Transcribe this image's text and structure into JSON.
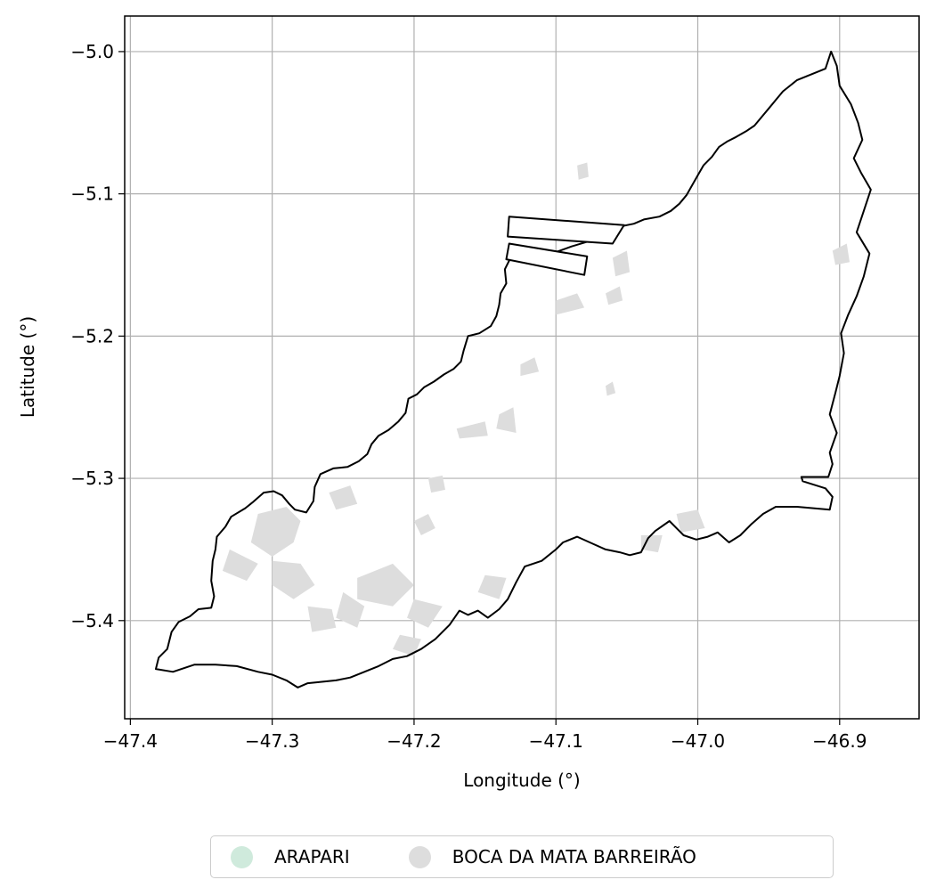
{
  "chart_data": {
    "type": "map",
    "xlabel": "Longitude (°)",
    "ylabel": "Latitude (°)",
    "xlim": [
      -47.404,
      -46.844
    ],
    "ylim": [
      -5.469,
      -4.975
    ],
    "x_ticks": [
      -47.4,
      -47.3,
      -47.2,
      -47.1,
      -47.0,
      -46.9
    ],
    "y_ticks": [
      -5.0,
      -5.1,
      -5.2,
      -5.3,
      -5.4
    ],
    "x_tick_labels": [
      "−47.4",
      "−47.3",
      "−47.2",
      "−47.1",
      "−47.0",
      "−46.9"
    ],
    "y_tick_labels": [
      "−5.0",
      "−5.1",
      "−5.2",
      "−5.3",
      "−5.4"
    ],
    "grid": true,
    "legend_position": "bottom-center",
    "legend": [
      {
        "label": "ARAPARI",
        "color": "#cfeadc"
      },
      {
        "label": "BOCA DA MATA BARREIRÃO",
        "color": "#dddddd"
      }
    ],
    "boundary_color": "#000000",
    "patch_color": "#dddddd",
    "boundary": [
      [
        -47.382,
        -5.434
      ],
      [
        -47.38,
        -5.426
      ],
      [
        -47.374,
        -5.42
      ],
      [
        -47.371,
        -5.408
      ],
      [
        -47.366,
        -5.401
      ],
      [
        -47.358,
        -5.397
      ],
      [
        -47.352,
        -5.392
      ],
      [
        -47.343,
        -5.391
      ],
      [
        -47.341,
        -5.383
      ],
      [
        -47.343,
        -5.372
      ],
      [
        -47.342,
        -5.358
      ],
      [
        -47.34,
        -5.35
      ],
      [
        -47.339,
        -5.341
      ],
      [
        -47.333,
        -5.334
      ],
      [
        -47.329,
        -5.327
      ],
      [
        -47.319,
        -5.321
      ],
      [
        -47.314,
        -5.317
      ],
      [
        -47.306,
        -5.31
      ],
      [
        -47.299,
        -5.309
      ],
      [
        -47.293,
        -5.312
      ],
      [
        -47.288,
        -5.318
      ],
      [
        -47.284,
        -5.322
      ],
      [
        -47.276,
        -5.324
      ],
      [
        -47.271,
        -5.316
      ],
      [
        -47.27,
        -5.306
      ],
      [
        -47.266,
        -5.297
      ],
      [
        -47.257,
        -5.293
      ],
      [
        -47.247,
        -5.292
      ],
      [
        -47.239,
        -5.288
      ],
      [
        -47.233,
        -5.283
      ],
      [
        -47.23,
        -5.276
      ],
      [
        -47.225,
        -5.27
      ],
      [
        -47.218,
        -5.266
      ],
      [
        -47.211,
        -5.26
      ],
      [
        -47.206,
        -5.254
      ],
      [
        -47.204,
        -5.244
      ],
      [
        -47.198,
        -5.241
      ],
      [
        -47.193,
        -5.236
      ],
      [
        -47.186,
        -5.232
      ],
      [
        -47.179,
        -5.227
      ],
      [
        -47.172,
        -5.223
      ],
      [
        -47.167,
        -5.218
      ],
      [
        -47.165,
        -5.21
      ],
      [
        -47.162,
        -5.2
      ],
      [
        -47.154,
        -5.198
      ],
      [
        -47.146,
        -5.193
      ],
      [
        -47.142,
        -5.186
      ],
      [
        -47.14,
        -5.178
      ],
      [
        -47.139,
        -5.17
      ],
      [
        -47.135,
        -5.163
      ],
      [
        -47.136,
        -5.153
      ],
      [
        -47.133,
        -5.147
      ],
      [
        -47.128,
        -5.143
      ],
      [
        -47.118,
        -5.144
      ],
      [
        -47.111,
        -5.143
      ],
      [
        -47.1,
        -5.141
      ],
      [
        -47.089,
        -5.137
      ],
      [
        -47.079,
        -5.134
      ],
      [
        -47.072,
        -5.131
      ],
      [
        -47.062,
        -5.127
      ],
      [
        -47.055,
        -5.123
      ],
      [
        -47.045,
        -5.121
      ],
      [
        -47.038,
        -5.118
      ],
      [
        -47.027,
        -5.116
      ],
      [
        -47.019,
        -5.112
      ],
      [
        -47.013,
        -5.107
      ],
      [
        -47.008,
        -5.101
      ],
      [
        -47.004,
        -5.094
      ],
      [
        -47.0,
        -5.087
      ],
      [
        -46.996,
        -5.08
      ],
      [
        -46.99,
        -5.074
      ],
      [
        -46.985,
        -5.067
      ],
      [
        -46.979,
        -5.063
      ],
      [
        -46.973,
        -5.06
      ],
      [
        -46.966,
        -5.056
      ],
      [
        -46.96,
        -5.052
      ],
      [
        -46.955,
        -5.046
      ],
      [
        -46.95,
        -5.04
      ],
      [
        -46.945,
        -5.034
      ],
      [
        -46.94,
        -5.028
      ],
      [
        -46.93,
        -5.02
      ],
      [
        -46.91,
        -5.012
      ],
      [
        -46.906,
        -5.0
      ],
      [
        -46.902,
        -5.01
      ],
      [
        -46.9,
        -5.024
      ],
      [
        -46.892,
        -5.037
      ],
      [
        -46.887,
        -5.05
      ],
      [
        -46.884,
        -5.062
      ],
      [
        -46.89,
        -5.075
      ],
      [
        -46.885,
        -5.085
      ],
      [
        -46.878,
        -5.097
      ],
      [
        -46.883,
        -5.112
      ],
      [
        -46.888,
        -5.127
      ],
      [
        -46.879,
        -5.142
      ],
      [
        -46.883,
        -5.158
      ],
      [
        -46.888,
        -5.172
      ],
      [
        -46.894,
        -5.185
      ],
      [
        -46.899,
        -5.198
      ],
      [
        -46.897,
        -5.212
      ],
      [
        -46.9,
        -5.228
      ],
      [
        -46.903,
        -5.24
      ],
      [
        -46.907,
        -5.255
      ],
      [
        -46.902,
        -5.268
      ],
      [
        -46.907,
        -5.282
      ],
      [
        -46.905,
        -5.29
      ],
      [
        -46.908,
        -5.299
      ],
      [
        -46.927,
        -5.299
      ],
      [
        -46.926,
        -5.302
      ],
      [
        -46.91,
        -5.307
      ],
      [
        -46.905,
        -5.313
      ],
      [
        -46.907,
        -5.322
      ],
      [
        -46.93,
        -5.32
      ],
      [
        -46.945,
        -5.32
      ],
      [
        -46.954,
        -5.325
      ],
      [
        -46.962,
        -5.332
      ],
      [
        -46.97,
        -5.34
      ],
      [
        -46.978,
        -5.345
      ],
      [
        -46.986,
        -5.338
      ],
      [
        -46.993,
        -5.341
      ],
      [
        -47.001,
        -5.343
      ],
      [
        -47.01,
        -5.34
      ],
      [
        -47.02,
        -5.33
      ],
      [
        -47.03,
        -5.337
      ],
      [
        -47.035,
        -5.342
      ],
      [
        -47.04,
        -5.352
      ],
      [
        -47.048,
        -5.354
      ],
      [
        -47.055,
        -5.352
      ],
      [
        -47.065,
        -5.35
      ],
      [
        -47.074,
        -5.346
      ],
      [
        -47.085,
        -5.341
      ],
      [
        -47.095,
        -5.345
      ],
      [
        -47.1,
        -5.35
      ],
      [
        -47.11,
        -5.358
      ],
      [
        -47.122,
        -5.362
      ],
      [
        -47.128,
        -5.373
      ],
      [
        -47.134,
        -5.385
      ],
      [
        -47.14,
        -5.392
      ],
      [
        -47.148,
        -5.398
      ],
      [
        -47.155,
        -5.393
      ],
      [
        -47.162,
        -5.396
      ],
      [
        -47.168,
        -5.393
      ],
      [
        -47.175,
        -5.403
      ],
      [
        -47.185,
        -5.413
      ],
      [
        -47.195,
        -5.42
      ],
      [
        -47.205,
        -5.425
      ],
      [
        -47.215,
        -5.427
      ],
      [
        -47.225,
        -5.432
      ],
      [
        -47.235,
        -5.436
      ],
      [
        -47.245,
        -5.44
      ],
      [
        -47.255,
        -5.442
      ],
      [
        -47.265,
        -5.443
      ],
      [
        -47.275,
        -5.444
      ],
      [
        -47.282,
        -5.447
      ],
      [
        -47.29,
        -5.442
      ],
      [
        -47.3,
        -5.438
      ],
      [
        -47.31,
        -5.436
      ],
      [
        -47.325,
        -5.432
      ],
      [
        -47.34,
        -5.431
      ],
      [
        -47.355,
        -5.431
      ],
      [
        -47.37,
        -5.436
      ],
      [
        -47.382,
        -5.434
      ]
    ],
    "holes": [
      [
        [
          -47.133,
          -5.116
        ],
        [
          -47.052,
          -5.122
        ],
        [
          -47.06,
          -5.135
        ],
        [
          -47.134,
          -5.13
        ],
        [
          -47.133,
          -5.116
        ]
      ],
      [
        [
          -47.133,
          -5.135
        ],
        [
          -47.078,
          -5.144
        ],
        [
          -47.08,
          -5.157
        ],
        [
          -47.135,
          -5.146
        ],
        [
          -47.133,
          -5.135
        ]
      ]
    ],
    "patches": [
      [
        [
          -47.31,
          -5.325
        ],
        [
          -47.29,
          -5.32
        ],
        [
          -47.28,
          -5.33
        ],
        [
          -47.285,
          -5.345
        ],
        [
          -47.3,
          -5.355
        ],
        [
          -47.315,
          -5.345
        ]
      ],
      [
        [
          -47.33,
          -5.35
        ],
        [
          -47.31,
          -5.36
        ],
        [
          -47.318,
          -5.372
        ],
        [
          -47.335,
          -5.365
        ]
      ],
      [
        [
          -47.3,
          -5.358
        ],
        [
          -47.28,
          -5.36
        ],
        [
          -47.27,
          -5.375
        ],
        [
          -47.285,
          -5.385
        ],
        [
          -47.3,
          -5.375
        ]
      ],
      [
        [
          -47.26,
          -5.31
        ],
        [
          -47.245,
          -5.305
        ],
        [
          -47.24,
          -5.318
        ],
        [
          -47.255,
          -5.322
        ]
      ],
      [
        [
          -47.24,
          -5.37
        ],
        [
          -47.215,
          -5.36
        ],
        [
          -47.2,
          -5.375
        ],
        [
          -47.215,
          -5.39
        ],
        [
          -47.24,
          -5.385
        ]
      ],
      [
        [
          -47.25,
          -5.38
        ],
        [
          -47.235,
          -5.39
        ],
        [
          -47.24,
          -5.405
        ],
        [
          -47.255,
          -5.398
        ]
      ],
      [
        [
          -47.275,
          -5.39
        ],
        [
          -47.258,
          -5.392
        ],
        [
          -47.255,
          -5.405
        ],
        [
          -47.272,
          -5.408
        ]
      ],
      [
        [
          -47.2,
          -5.33
        ],
        [
          -47.19,
          -5.325
        ],
        [
          -47.185,
          -5.335
        ],
        [
          -47.195,
          -5.34
        ]
      ],
      [
        [
          -47.2,
          -5.385
        ],
        [
          -47.18,
          -5.39
        ],
        [
          -47.19,
          -5.405
        ],
        [
          -47.205,
          -5.398
        ]
      ],
      [
        [
          -47.21,
          -5.41
        ],
        [
          -47.195,
          -5.413
        ],
        [
          -47.2,
          -5.425
        ],
        [
          -47.215,
          -5.42
        ]
      ],
      [
        [
          -47.17,
          -5.265
        ],
        [
          -47.15,
          -5.26
        ],
        [
          -47.148,
          -5.27
        ],
        [
          -47.168,
          -5.272
        ]
      ],
      [
        [
          -47.14,
          -5.255
        ],
        [
          -47.13,
          -5.25
        ],
        [
          -47.128,
          -5.268
        ],
        [
          -47.142,
          -5.265
        ]
      ],
      [
        [
          -47.15,
          -5.368
        ],
        [
          -47.135,
          -5.37
        ],
        [
          -47.14,
          -5.385
        ],
        [
          -47.155,
          -5.38
        ]
      ],
      [
        [
          -47.1,
          -5.175
        ],
        [
          -47.085,
          -5.17
        ],
        [
          -47.08,
          -5.18
        ],
        [
          -47.1,
          -5.185
        ]
      ],
      [
        [
          -47.125,
          -5.22
        ],
        [
          -47.115,
          -5.215
        ],
        [
          -47.112,
          -5.225
        ],
        [
          -47.125,
          -5.228
        ]
      ],
      [
        [
          -47.065,
          -5.17
        ],
        [
          -47.055,
          -5.165
        ],
        [
          -47.053,
          -5.175
        ],
        [
          -47.063,
          -5.178
        ]
      ],
      [
        [
          -47.06,
          -5.145
        ],
        [
          -47.05,
          -5.14
        ],
        [
          -47.048,
          -5.155
        ],
        [
          -47.058,
          -5.158
        ]
      ],
      [
        [
          -47.085,
          -5.08
        ],
        [
          -47.078,
          -5.078
        ],
        [
          -47.077,
          -5.088
        ],
        [
          -47.084,
          -5.09
        ]
      ],
      [
        [
          -47.04,
          -5.34
        ],
        [
          -47.025,
          -5.34
        ],
        [
          -47.028,
          -5.352
        ],
        [
          -47.04,
          -5.35
        ]
      ],
      [
        [
          -47.015,
          -5.325
        ],
        [
          -47.0,
          -5.322
        ],
        [
          -46.995,
          -5.335
        ],
        [
          -47.012,
          -5.338
        ]
      ],
      [
        [
          -46.905,
          -5.14
        ],
        [
          -46.895,
          -5.135
        ],
        [
          -46.893,
          -5.148
        ],
        [
          -46.903,
          -5.15
        ]
      ],
      [
        [
          -47.065,
          -5.235
        ],
        [
          -47.06,
          -5.232
        ],
        [
          -47.058,
          -5.24
        ],
        [
          -47.064,
          -5.242
        ]
      ],
      [
        [
          -47.19,
          -5.3
        ],
        [
          -47.18,
          -5.298
        ],
        [
          -47.178,
          -5.308
        ],
        [
          -47.188,
          -5.31
        ]
      ]
    ]
  }
}
